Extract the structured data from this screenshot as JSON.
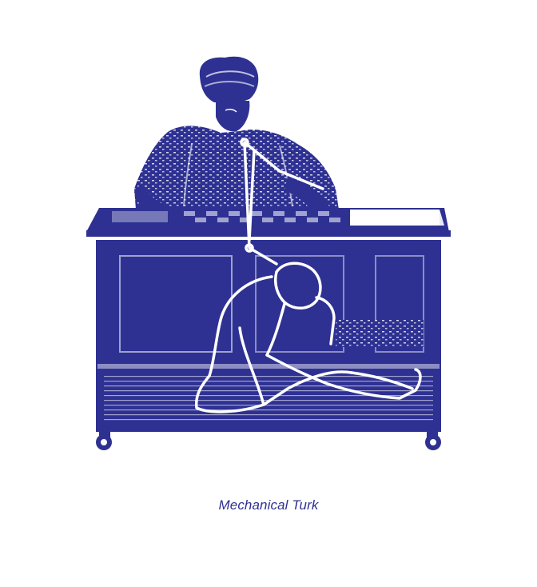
{
  "caption": "Mechanical Turk",
  "colors": {
    "ink": "#2e3192",
    "paper": "#ffffff"
  },
  "illustration": {
    "subject_icon": "mechanical-turk-engraving"
  }
}
